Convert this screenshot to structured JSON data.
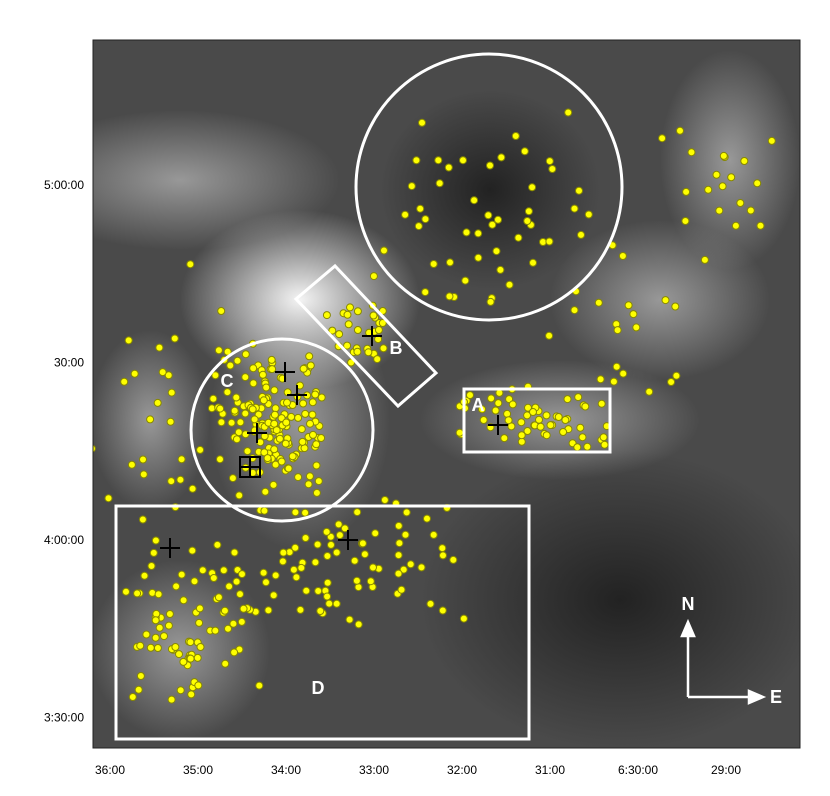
{
  "axes": {
    "x_ticks": [
      "36:00",
      "35:00",
      "34:00",
      "33:00",
      "32:00",
      "31:00",
      "6:30:00",
      "29:00"
    ],
    "y_ticks": [
      "5:00:00",
      "30:00",
      "4:00:00",
      "3:30:00"
    ]
  },
  "regions": {
    "a": "A",
    "b": "B",
    "c": "C",
    "d": "D"
  },
  "compass": {
    "north": "N",
    "east": "E"
  }
}
